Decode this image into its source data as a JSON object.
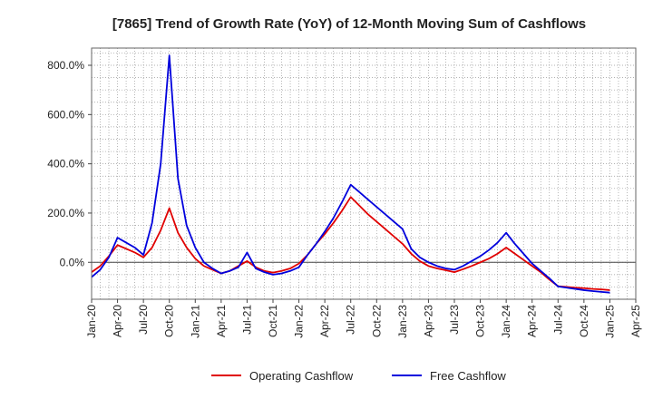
{
  "chart_data": {
    "type": "line",
    "title": "[7865]  Trend of Growth Rate (YoY) of 12-Month Moving Sum of Cashflows",
    "xlabel": "",
    "ylabel": "",
    "ylim": [
      -150,
      870
    ],
    "xlim": [
      "2020-01",
      "2025-04"
    ],
    "grid": true,
    "legend_position": "bottom",
    "y_ticks": [
      {
        "value": 800,
        "label": "800.0%"
      },
      {
        "value": 600,
        "label": "600.0%"
      },
      {
        "value": 400,
        "label": "400.0%"
      },
      {
        "value": 200,
        "label": "200.0%"
      },
      {
        "value": 0,
        "label": "0.0%"
      }
    ],
    "x_ticks": [
      {
        "value": "2020-01",
        "label": "Jan-20"
      },
      {
        "value": "2020-04",
        "label": "Apr-20"
      },
      {
        "value": "2020-07",
        "label": "Jul-20"
      },
      {
        "value": "2020-10",
        "label": "Oct-20"
      },
      {
        "value": "2021-01",
        "label": "Jan-21"
      },
      {
        "value": "2021-04",
        "label": "Apr-21"
      },
      {
        "value": "2021-07",
        "label": "Jul-21"
      },
      {
        "value": "2021-10",
        "label": "Oct-21"
      },
      {
        "value": "2022-01",
        "label": "Jan-22"
      },
      {
        "value": "2022-04",
        "label": "Apr-22"
      },
      {
        "value": "2022-07",
        "label": "Jul-22"
      },
      {
        "value": "2022-10",
        "label": "Oct-22"
      },
      {
        "value": "2023-01",
        "label": "Jan-23"
      },
      {
        "value": "2023-04",
        "label": "Apr-23"
      },
      {
        "value": "2023-07",
        "label": "Jul-23"
      },
      {
        "value": "2023-10",
        "label": "Oct-23"
      },
      {
        "value": "2024-01",
        "label": "Jan-24"
      },
      {
        "value": "2024-04",
        "label": "Apr-24"
      },
      {
        "value": "2024-07",
        "label": "Jul-24"
      },
      {
        "value": "2024-10",
        "label": "Oct-24"
      },
      {
        "value": "2025-01",
        "label": "Jan-25"
      },
      {
        "value": "2025-04",
        "label": "Apr-25"
      }
    ],
    "series": [
      {
        "name": "Operating Cashflow",
        "color": "#e00000",
        "points": [
          [
            "2020-01",
            -40
          ],
          [
            "2020-02",
            -15
          ],
          [
            "2020-03",
            25
          ],
          [
            "2020-04",
            70
          ],
          [
            "2020-05",
            55
          ],
          [
            "2020-06",
            40
          ],
          [
            "2020-07",
            20
          ],
          [
            "2020-08",
            60
          ],
          [
            "2020-09",
            130
          ],
          [
            "2020-10",
            220
          ],
          [
            "2020-11",
            120
          ],
          [
            "2020-12",
            60
          ],
          [
            "2021-01",
            15
          ],
          [
            "2021-02",
            -15
          ],
          [
            "2021-03",
            -30
          ],
          [
            "2021-04",
            -45
          ],
          [
            "2021-05",
            -35
          ],
          [
            "2021-06",
            -15
          ],
          [
            "2021-07",
            5
          ],
          [
            "2021-08",
            -20
          ],
          [
            "2021-09",
            -35
          ],
          [
            "2021-10",
            -42
          ],
          [
            "2021-11",
            -35
          ],
          [
            "2021-12",
            -25
          ],
          [
            "2022-01",
            -5
          ],
          [
            "2022-02",
            30
          ],
          [
            "2022-03",
            75
          ],
          [
            "2022-04",
            115
          ],
          [
            "2022-05",
            160
          ],
          [
            "2022-06",
            210
          ],
          [
            "2022-07",
            265
          ],
          [
            "2022-08",
            230
          ],
          [
            "2022-09",
            195
          ],
          [
            "2022-10",
            165
          ],
          [
            "2022-11",
            135
          ],
          [
            "2022-12",
            105
          ],
          [
            "2023-01",
            75
          ],
          [
            "2023-02",
            35
          ],
          [
            "2023-03",
            5
          ],
          [
            "2023-04",
            -15
          ],
          [
            "2023-05",
            -25
          ],
          [
            "2023-06",
            -32
          ],
          [
            "2023-07",
            -40
          ],
          [
            "2023-08",
            -28
          ],
          [
            "2023-09",
            -15
          ],
          [
            "2023-10",
            0
          ],
          [
            "2023-11",
            15
          ],
          [
            "2023-12",
            35
          ],
          [
            "2024-01",
            60
          ],
          [
            "2024-02",
            35
          ],
          [
            "2024-03",
            10
          ],
          [
            "2024-04",
            -15
          ],
          [
            "2024-05",
            -40
          ],
          [
            "2024-06",
            -70
          ],
          [
            "2024-07",
            -97
          ],
          [
            "2024-08",
            -100
          ],
          [
            "2024-09",
            -103
          ],
          [
            "2024-10",
            -105
          ],
          [
            "2024-11",
            -108
          ],
          [
            "2024-12",
            -110
          ],
          [
            "2025-01",
            -113
          ]
        ]
      },
      {
        "name": "Free Cashflow",
        "color": "#0000dd",
        "points": [
          [
            "2020-01",
            -60
          ],
          [
            "2020-02",
            -30
          ],
          [
            "2020-03",
            20
          ],
          [
            "2020-04",
            100
          ],
          [
            "2020-05",
            80
          ],
          [
            "2020-06",
            60
          ],
          [
            "2020-07",
            30
          ],
          [
            "2020-08",
            160
          ],
          [
            "2020-09",
            400
          ],
          [
            "2020-10",
            840
          ],
          [
            "2020-11",
            340
          ],
          [
            "2020-12",
            150
          ],
          [
            "2021-01",
            60
          ],
          [
            "2021-02",
            0
          ],
          [
            "2021-03",
            -25
          ],
          [
            "2021-04",
            -45
          ],
          [
            "2021-05",
            -35
          ],
          [
            "2021-06",
            -20
          ],
          [
            "2021-07",
            40
          ],
          [
            "2021-08",
            -25
          ],
          [
            "2021-09",
            -40
          ],
          [
            "2021-10",
            -50
          ],
          [
            "2021-11",
            -45
          ],
          [
            "2021-12",
            -35
          ],
          [
            "2022-01",
            -20
          ],
          [
            "2022-02",
            30
          ],
          [
            "2022-03",
            75
          ],
          [
            "2022-04",
            125
          ],
          [
            "2022-05",
            180
          ],
          [
            "2022-06",
            245
          ],
          [
            "2022-07",
            315
          ],
          [
            "2022-08",
            285
          ],
          [
            "2022-09",
            255
          ],
          [
            "2022-10",
            225
          ],
          [
            "2022-11",
            195
          ],
          [
            "2022-12",
            165
          ],
          [
            "2023-01",
            135
          ],
          [
            "2023-02",
            55
          ],
          [
            "2023-03",
            20
          ],
          [
            "2023-04",
            0
          ],
          [
            "2023-05",
            -15
          ],
          [
            "2023-06",
            -25
          ],
          [
            "2023-07",
            -30
          ],
          [
            "2023-08",
            -15
          ],
          [
            "2023-09",
            5
          ],
          [
            "2023-10",
            25
          ],
          [
            "2023-11",
            50
          ],
          [
            "2023-12",
            80
          ],
          [
            "2024-01",
            120
          ],
          [
            "2024-02",
            75
          ],
          [
            "2024-03",
            35
          ],
          [
            "2024-04",
            -5
          ],
          [
            "2024-05",
            -35
          ],
          [
            "2024-06",
            -65
          ],
          [
            "2024-07",
            -98
          ],
          [
            "2024-08",
            -103
          ],
          [
            "2024-09",
            -108
          ],
          [
            "2024-10",
            -113
          ],
          [
            "2024-11",
            -117
          ],
          [
            "2024-12",
            -120
          ],
          [
            "2025-01",
            -123
          ]
        ]
      }
    ]
  }
}
